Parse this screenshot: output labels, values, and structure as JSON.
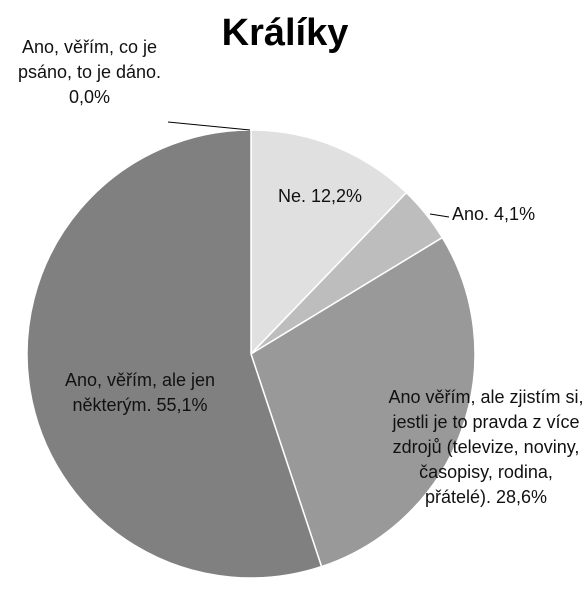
{
  "chart_data": {
    "type": "pie",
    "title": "Králíky",
    "categories": [
      "Ano, věřím, co je psáno, to je dáno.",
      "Ne.",
      "Ano.",
      "Ano věřím, ale zjistím si, jestli je to pravda z více zdrojů (televize, noviny, časopisy, rodina, přátelé).",
      "Ano, věřím, ale jen některým."
    ],
    "values": [
      0.0,
      12.2,
      4.1,
      28.6,
      55.1
    ],
    "value_labels": [
      "0,0%",
      "12,2%",
      "4,1%",
      "28,6%",
      "55,1%"
    ],
    "colors": [
      "#d0d0d0",
      "#e0e0e0",
      "#bdbdbd",
      "#999999",
      "#808080"
    ]
  }
}
